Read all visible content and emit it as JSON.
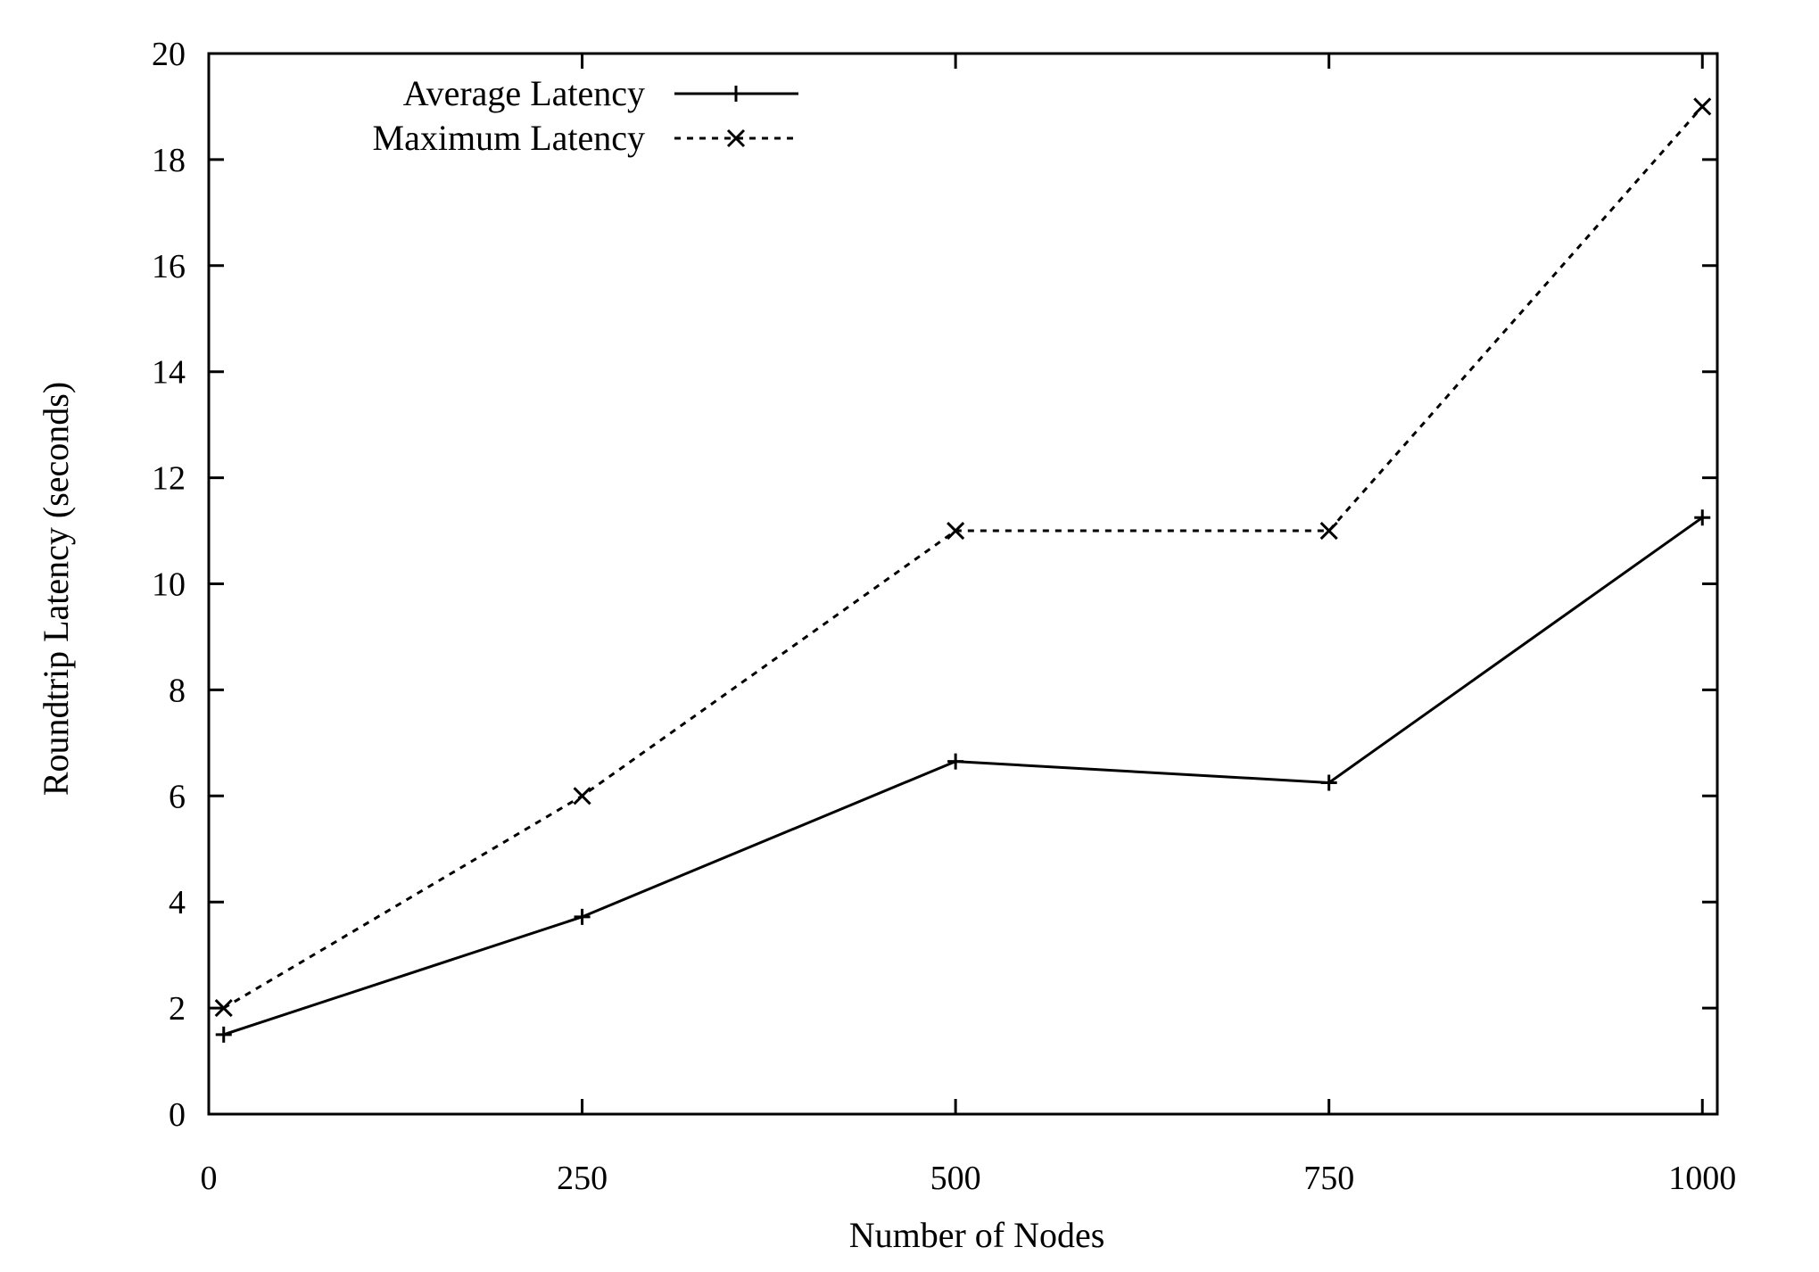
{
  "chart_data": {
    "type": "line",
    "title": "",
    "xlabel": "Number of Nodes",
    "ylabel": "Roundtrip Latency (seconds)",
    "xlim": [
      0,
      1010
    ],
    "ylim": [
      0,
      20
    ],
    "x_ticks": [
      0,
      250,
      500,
      750,
      1000
    ],
    "x_tick_labels": [
      "0",
      "250",
      "500",
      "750",
      "1000"
    ],
    "y_ticks": [
      0,
      2,
      4,
      6,
      8,
      10,
      12,
      14,
      16,
      18,
      20
    ],
    "y_tick_labels": [
      "0",
      "2",
      "4",
      "6",
      "8",
      "10",
      "12",
      "14",
      "16",
      "18",
      "20"
    ],
    "grid": false,
    "legend_position": "top-left",
    "x": [
      10,
      250,
      500,
      750,
      1000
    ],
    "series": [
      {
        "name": "Average Latency",
        "style": "solid",
        "marker": "plus",
        "color": "#000000",
        "values": [
          1.5,
          3.72,
          6.65,
          6.25,
          11.25
        ]
      },
      {
        "name": "Maximum Latency",
        "style": "dotted",
        "marker": "cross",
        "color": "#000000",
        "values": [
          2,
          6,
          11,
          11,
          19
        ]
      }
    ]
  }
}
